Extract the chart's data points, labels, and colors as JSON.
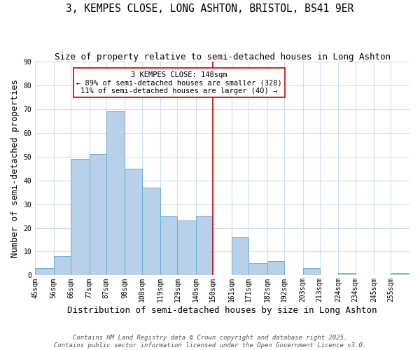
{
  "title": "3, KEMPES CLOSE, LONG ASHTON, BRISTOL, BS41 9ER",
  "subtitle": "Size of property relative to semi-detached houses in Long Ashton",
  "xlabel": "Distribution of semi-detached houses by size in Long Ashton",
  "ylabel": "Number of semi-detached properties",
  "bin_labels": [
    "45sqm",
    "56sqm",
    "66sqm",
    "77sqm",
    "87sqm",
    "98sqm",
    "108sqm",
    "119sqm",
    "129sqm",
    "140sqm",
    "150sqm",
    "161sqm",
    "171sqm",
    "182sqm",
    "192sqm",
    "203sqm",
    "213sqm",
    "224sqm",
    "234sqm",
    "245sqm",
    "255sqm"
  ],
  "bin_edges": [
    45,
    56,
    66,
    77,
    87,
    98,
    108,
    119,
    129,
    140,
    150,
    161,
    171,
    182,
    192,
    203,
    213,
    224,
    234,
    245,
    255,
    266
  ],
  "counts": [
    3,
    8,
    49,
    51,
    69,
    45,
    37,
    25,
    23,
    25,
    0,
    16,
    5,
    6,
    0,
    3,
    0,
    1,
    0,
    0,
    1
  ],
  "bar_color": "#b8d0ea",
  "bar_edge_color": "#6aaed6",
  "grid_color": "#d0dff0",
  "property_line_x": 150,
  "property_label": "3 KEMPES CLOSE: 148sqm",
  "annotation_line1": "← 89% of semi-detached houses are smaller (328)",
  "annotation_line2": "11% of semi-detached houses are larger (40) →",
  "annotation_box_color": "#ffffff",
  "annotation_box_edge_color": "#cc0000",
  "vline_color": "#cc0000",
  "footer1": "Contains HM Land Registry data © Crown copyright and database right 2025.",
  "footer2": "Contains public sector information licensed under the Open Government Licence v3.0.",
  "ylim": [
    0,
    90
  ],
  "title_fontsize": 10.5,
  "subtitle_fontsize": 9,
  "axis_label_fontsize": 9,
  "tick_fontsize": 7,
  "annotation_fontsize": 7.5,
  "footer_fontsize": 6.5
}
